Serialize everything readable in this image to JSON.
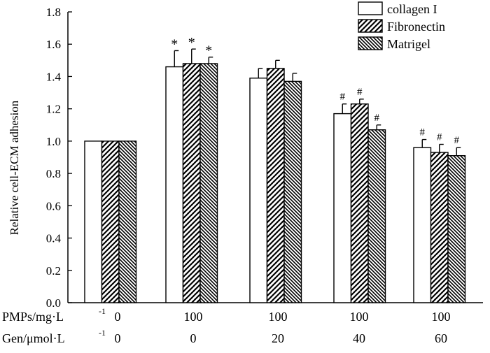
{
  "chart_data": {
    "type": "bar",
    "title": "",
    "xlabel": "",
    "ylabel": "Relative cell-ECM adhesion",
    "ylim": [
      0,
      1.8
    ],
    "yticks": [
      "0.0",
      "0.2",
      "0.4",
      "0.6",
      "0.8",
      "1.0",
      "1.2",
      "1.4",
      "1.6",
      "1.8"
    ],
    "grid": false,
    "legend_position": "top-right",
    "row_labels": [
      {
        "label": "PMPs/mg·L",
        "sup": "-1",
        "values": [
          "0",
          "100",
          "100",
          "100",
          "100"
        ]
      },
      {
        "label": "Gen/μmol·L",
        "sup": "-1",
        "values": [
          "0",
          "0",
          "20",
          "40",
          "60"
        ]
      }
    ],
    "series": [
      {
        "name": "collagen I",
        "pattern": "white",
        "values": [
          1.0,
          1.46,
          1.39,
          1.17,
          0.96
        ],
        "errors": [
          0.0,
          0.1,
          0.06,
          0.06,
          0.05
        ],
        "marks": [
          "",
          "*",
          "",
          "#",
          "#"
        ]
      },
      {
        "name": "Fibronectin",
        "pattern": "hatch-wide",
        "values": [
          1.0,
          1.48,
          1.45,
          1.23,
          0.93
        ],
        "errors": [
          0.0,
          0.09,
          0.05,
          0.03,
          0.05
        ],
        "marks": [
          "",
          "*",
          "",
          "#",
          "#"
        ]
      },
      {
        "name": "Matrigel",
        "pattern": "hatch-dense",
        "values": [
          1.0,
          1.48,
          1.37,
          1.07,
          0.91
        ],
        "errors": [
          0.0,
          0.04,
          0.05,
          0.03,
          0.05
        ],
        "marks": [
          "",
          "*",
          "",
          "#",
          "#"
        ]
      }
    ]
  }
}
